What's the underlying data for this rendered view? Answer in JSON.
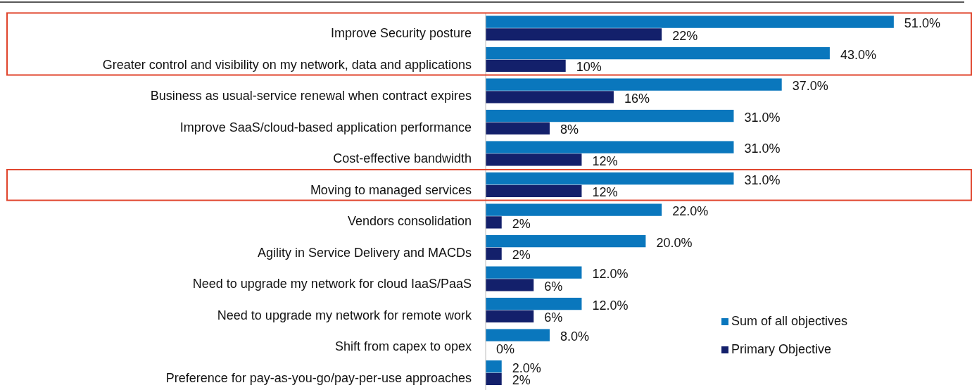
{
  "chart_data": {
    "type": "bar",
    "orientation": "horizontal",
    "categories": [
      "Improve Security posture",
      "Greater control and visibility on my network, data and applications",
      "Business as usual-service renewal when contract expires",
      "Improve SaaS/cloud-based application performance",
      "Cost-effective bandwidth",
      "Moving to managed services",
      "Vendors consolidation",
      "Agility in Service Delivery and MACDs",
      "Need to upgrade my network for cloud IaaS/PaaS",
      "Need to upgrade my network for remote work",
      "Shift from capex to opex",
      "Preference for pay-as-you-go/pay-per-use approaches"
    ],
    "series": [
      {
        "name": "Sum of all objectives",
        "color": "#0a77bd",
        "values": [
          51,
          43,
          37,
          31,
          31,
          31,
          22,
          20,
          12,
          12,
          8,
          2
        ],
        "value_labels": [
          "51.0%",
          "43.0%",
          "37.0%",
          "31.0%",
          "31.0%",
          "31.0%",
          "22.0%",
          "20.0%",
          "12.0%",
          "12.0%",
          "8.0%",
          "2.0%"
        ]
      },
      {
        "name": "Primary Objective",
        "color": "#13206b",
        "values": [
          22,
          10,
          16,
          8,
          12,
          12,
          2,
          2,
          6,
          6,
          0,
          2
        ],
        "value_labels": [
          "22%",
          "10%",
          "16%",
          "8%",
          "12%",
          "12%",
          "2%",
          "2%",
          "6%",
          "6%",
          "0%",
          "2%"
        ]
      }
    ],
    "tick_labels": "y",
    "legend": "bottom right"
  }
}
